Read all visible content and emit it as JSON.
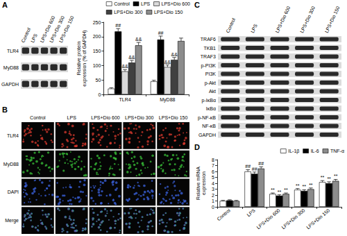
{
  "panel_labels": [
    "A",
    "B",
    "C",
    "D"
  ],
  "blot_A": {
    "lanes": [
      "Control",
      "LPS",
      "LPS+Dio 600",
      "LPS+Dio 300",
      "LPS+Dio 150"
    ],
    "rows": [
      "TLR4",
      "MyD88",
      "GAPDH"
    ]
  },
  "images_B": {
    "columns": [
      "Control",
      "LPS",
      "LPS+Dio 600",
      "LPS+Dio 300",
      "LPS+Dio 150"
    ],
    "rows": [
      "TLR4",
      "MyD88",
      "DAPI",
      "Merge"
    ]
  },
  "blot_C": {
    "lanes": [
      "Control",
      "LPS",
      "LPS+Dio 600",
      "LPS+Dio 300",
      "LPS+Dio 150"
    ],
    "rows": [
      "TRAF6",
      "TKB1",
      "TRAF3",
      "p-PI3K",
      "PI3K",
      "p-Akt",
      "Akt",
      "p-IκBα",
      "IκBα",
      "p-NF-κB",
      "NF-κB",
      "GAPDH"
    ]
  },
  "chart_data": [
    {
      "type": "bar",
      "ylabel": "Relative protein expression (% of GAPDH)",
      "categories": [
        "TLR4",
        "MyD88"
      ],
      "series": [
        {
          "name": "Control",
          "color": "#ffffff",
          "values": [
            20,
            45
          ],
          "errors": [
            3,
            4
          ],
          "annotations": [
            null,
            null
          ]
        },
        {
          "name": "LPS",
          "color": "#000000",
          "values": [
            218,
            190
          ],
          "errors": [
            10,
            12
          ],
          "annotations": [
            "##",
            "##"
          ]
        },
        {
          "name": "LPS+Dio 600",
          "color": "#d9d9d9",
          "values": [
            80,
            95
          ],
          "errors": [
            6,
            7
          ],
          "annotations": [
            "&&",
            "&&"
          ]
        },
        {
          "name": "LPS+Dio 300",
          "color": "#404040",
          "values": [
            110,
            120
          ],
          "errors": [
            8,
            8
          ],
          "annotations": [
            "&&",
            "&&"
          ]
        },
        {
          "name": "LPS+Dio 150",
          "color": "#8c8c8c",
          "values": [
            170,
            185
          ],
          "errors": [
            10,
            10
          ],
          "annotations": [
            "&&",
            null
          ]
        }
      ],
      "ylim": [
        0,
        250
      ],
      "yticks": [
        0,
        50,
        100,
        150,
        200,
        250
      ],
      "grid": false,
      "legend": "top-right"
    },
    {
      "type": "bar",
      "ylabel": "Relative mRNA expression",
      "categories": [
        "Control",
        "LPS",
        "LPS+Dio 600",
        "LPS+Dio 300",
        "LPS+Dio 150"
      ],
      "series": [
        {
          "name": "IL-1β",
          "color": "#ffffff",
          "values": [
            1.0,
            6.0,
            2.2,
            2.9,
            4.2
          ],
          "errors": [
            0.1,
            0.3,
            0.15,
            0.2,
            0.25
          ],
          "annotations": [
            null,
            "##",
            "**",
            "**",
            "**"
          ]
        },
        {
          "name": "IL-6",
          "color": "#000000",
          "values": [
            1.1,
            5.6,
            1.9,
            2.7,
            4.0
          ],
          "errors": [
            0.1,
            0.3,
            0.15,
            0.2,
            0.25
          ],
          "annotations": [
            null,
            "##",
            "**",
            "**",
            "**"
          ]
        },
        {
          "name": "TNF-α",
          "color": "#8c8c8c",
          "values": [
            1.0,
            6.5,
            2.2,
            3.0,
            4.4
          ],
          "errors": [
            0.1,
            0.3,
            0.15,
            0.2,
            0.25
          ],
          "annotations": [
            null,
            "##",
            "**",
            "**",
            "**"
          ]
        }
      ],
      "ylim": [
        0,
        8
      ],
      "yticks": [
        0,
        1,
        2,
        3,
        4,
        5,
        6,
        7,
        8
      ],
      "grid": false,
      "legend": "top-right"
    }
  ]
}
